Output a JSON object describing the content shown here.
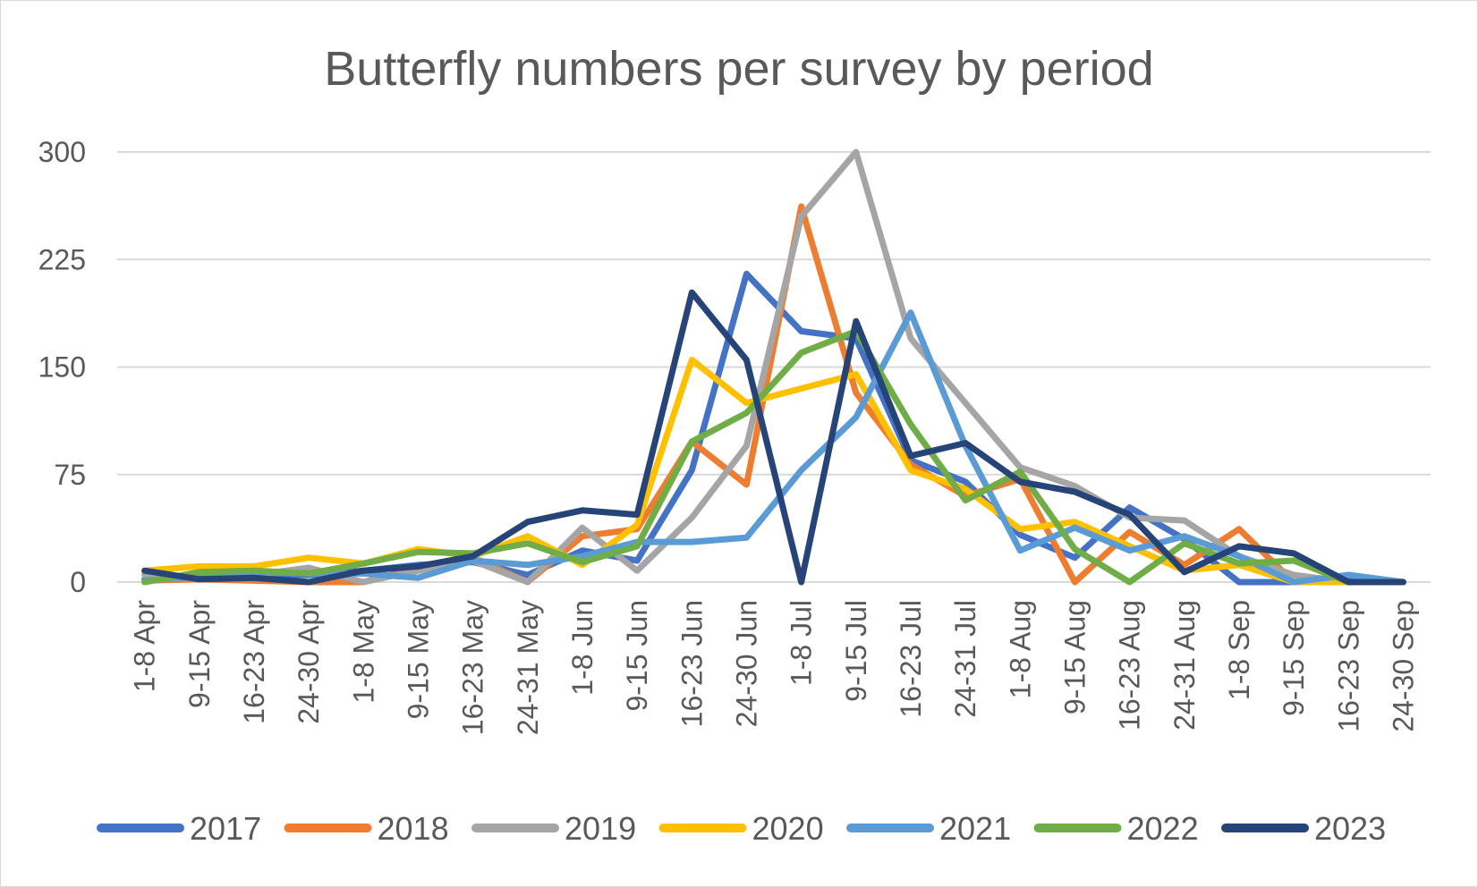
{
  "chart_data": {
    "type": "line",
    "title": "Butterfly numbers per survey by period",
    "xlabel": "",
    "ylabel": "",
    "ylim": [
      0,
      300
    ],
    "yticks": [
      0,
      75,
      150,
      225,
      300
    ],
    "grid": true,
    "legend_position": "bottom",
    "categories": [
      "1-8 Apr",
      "9-15 Apr",
      "16-23 Apr",
      "24-30 Apr",
      "1-8 May",
      "9-15 May",
      "16-23 May",
      "24-31 May",
      "1-8 Jun",
      "9-15 Jun",
      "16-23 Jun",
      "24-30 Jun",
      "1-8 Jul",
      "9-15 Jul",
      "16-23 Jul",
      "24-31 Jul",
      "1-8 Aug",
      "9-15 Aug",
      "16-23 Aug",
      "24-31 Aug",
      "1-8 Sep",
      "9-15 Sep",
      "16-23 Sep",
      "24-30 Sep"
    ],
    "series": [
      {
        "name": "2017",
        "color": "#4472c4",
        "values": [
          2,
          3,
          4,
          5,
          8,
          12,
          14,
          5,
          22,
          15,
          78,
          215,
          175,
          170,
          85,
          70,
          33,
          17,
          52,
          30,
          0,
          0,
          3,
          0
        ]
      },
      {
        "name": "2018",
        "color": "#ed7d31",
        "values": [
          1,
          2,
          1,
          0,
          0,
          10,
          17,
          0,
          32,
          37,
          98,
          68,
          262,
          132,
          82,
          60,
          72,
          0,
          35,
          12,
          37,
          0,
          0,
          0
        ]
      },
      {
        "name": "2019",
        "color": "#a5a5a5",
        "values": [
          5,
          3,
          5,
          10,
          0,
          8,
          15,
          0,
          38,
          8,
          45,
          95,
          255,
          300,
          170,
          125,
          80,
          67,
          45,
          43,
          18,
          5,
          0,
          0
        ]
      },
      {
        "name": "2020",
        "color": "#ffc000",
        "values": [
          8,
          11,
          11,
          17,
          13,
          23,
          18,
          32,
          12,
          40,
          155,
          125,
          135,
          145,
          78,
          65,
          37,
          42,
          25,
          8,
          12,
          0,
          0,
          0
        ]
      },
      {
        "name": "2021",
        "color": "#5b9bd5",
        "values": [
          1,
          4,
          7,
          6,
          6,
          3,
          15,
          12,
          18,
          28,
          28,
          31,
          78,
          115,
          188,
          95,
          22,
          38,
          22,
          32,
          18,
          0,
          5,
          0
        ]
      },
      {
        "name": "2022",
        "color": "#70ad47",
        "values": [
          0,
          7,
          8,
          6,
          13,
          21,
          20,
          27,
          14,
          25,
          98,
          118,
          160,
          175,
          110,
          57,
          77,
          23,
          0,
          27,
          13,
          15,
          0,
          0
        ]
      },
      {
        "name": "2023",
        "color": "#264478",
        "values": [
          8,
          2,
          3,
          0,
          8,
          11,
          18,
          42,
          50,
          47,
          202,
          155,
          0,
          182,
          88,
          97,
          70,
          63,
          47,
          7,
          25,
          20,
          0,
          0
        ]
      }
    ]
  }
}
